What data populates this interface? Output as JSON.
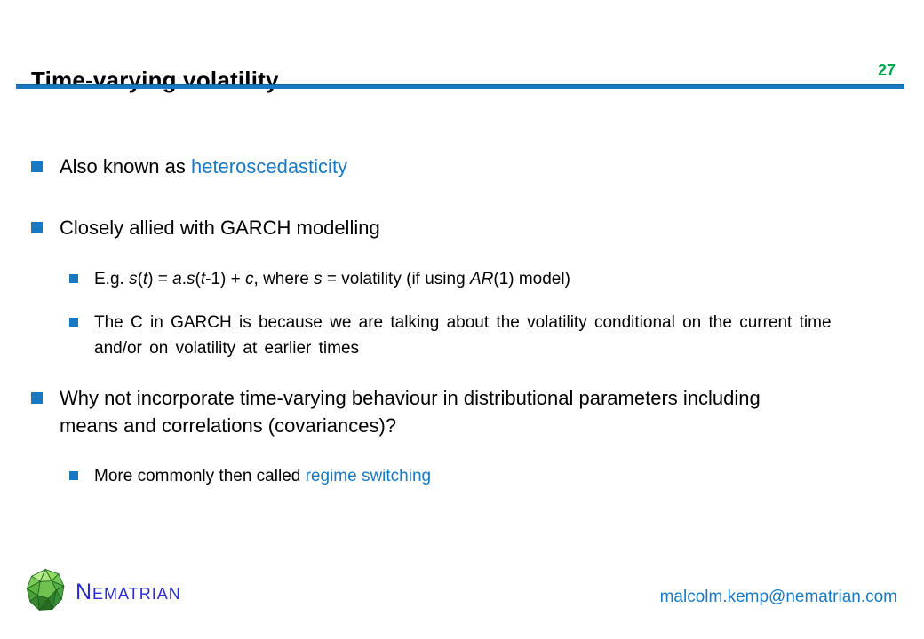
{
  "title": "Time-varying volatility",
  "page_number": "27",
  "colors": {
    "accent-blue": "#1879C2",
    "link-blue": "#1879C2",
    "page-green": "#00A551",
    "logo-blue": "#2B2BD2",
    "text-color": "#000000"
  },
  "bullets": [
    {
      "level": 1,
      "segments": [
        {
          "text": "Also known as ",
          "style": "plain"
        },
        {
          "text": "heteroscedasticity",
          "style": "link"
        }
      ]
    },
    {
      "level": 1,
      "segments": [
        {
          "text": "Closely allied with GARCH modelling",
          "style": "plain"
        }
      ]
    },
    {
      "level": 2,
      "segments": [
        {
          "text": "E.g. ",
          "style": "plain"
        },
        {
          "text": "s",
          "style": "italic"
        },
        {
          "text": "(",
          "style": "plain"
        },
        {
          "text": "t",
          "style": "italic"
        },
        {
          "text": ") = ",
          "style": "plain"
        },
        {
          "text": "a",
          "style": "italic"
        },
        {
          "text": ".",
          "style": "plain"
        },
        {
          "text": "s",
          "style": "italic"
        },
        {
          "text": "(",
          "style": "plain"
        },
        {
          "text": "t",
          "style": "italic"
        },
        {
          "text": "-1) + ",
          "style": "plain"
        },
        {
          "text": "c",
          "style": "italic"
        },
        {
          "text": ", where ",
          "style": "plain"
        },
        {
          "text": "s",
          "style": "italic"
        },
        {
          "text": " = volatility (if using ",
          "style": "plain"
        },
        {
          "text": "AR",
          "style": "italic"
        },
        {
          "text": "(1) model)",
          "style": "plain"
        }
      ]
    },
    {
      "level": 2,
      "segments": [
        {
          "text": "The C in GARCH is because we are talking about the volatility conditional on the current time and/or on volatility at earlier times",
          "style": "plain"
        }
      ]
    },
    {
      "level": 1,
      "segments": [
        {
          "text": "Why not incorporate time-varying behaviour in distributional parameters including means and correlations (covariances)?",
          "style": "plain"
        }
      ]
    },
    {
      "level": 2,
      "segments": [
        {
          "text": "More commonly then called ",
          "style": "plain"
        },
        {
          "text": "regime switching",
          "style": "link"
        }
      ]
    }
  ],
  "footer": {
    "logo_text": "Nematrian",
    "email": "malcolm.kemp@nematrian.com"
  }
}
